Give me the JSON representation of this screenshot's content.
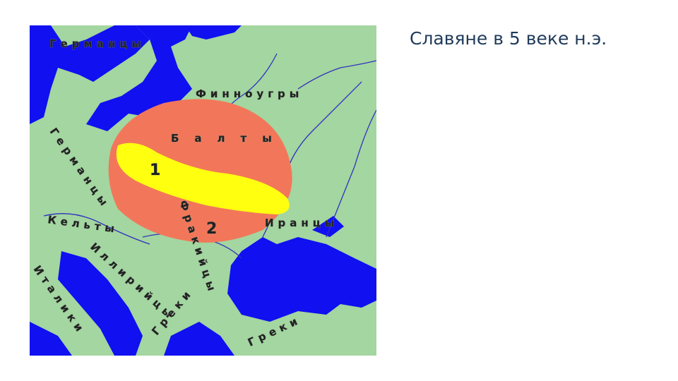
{
  "slide": {
    "title": "Славяне в 5 веке н.э."
  },
  "map": {
    "colors": {
      "land": "#a3d6a0",
      "water": "#1010f0",
      "region_2": "#f2775a",
      "region_1": "#ffff10",
      "rivers": "#3030c0"
    },
    "labels": {
      "germans_north": "Германцы",
      "finno_ugric": "Финноугры",
      "balts": "Балты",
      "region1": "1",
      "region2": "2",
      "germans_west": "Германцы",
      "celts": "Кельты",
      "thracians": "Фракийцы",
      "iranians": "Иранцы",
      "illyrians": "Иллирийцы",
      "italics": "Италики",
      "greeks_west": "Греки",
      "greeks_east": "Греки"
    }
  }
}
